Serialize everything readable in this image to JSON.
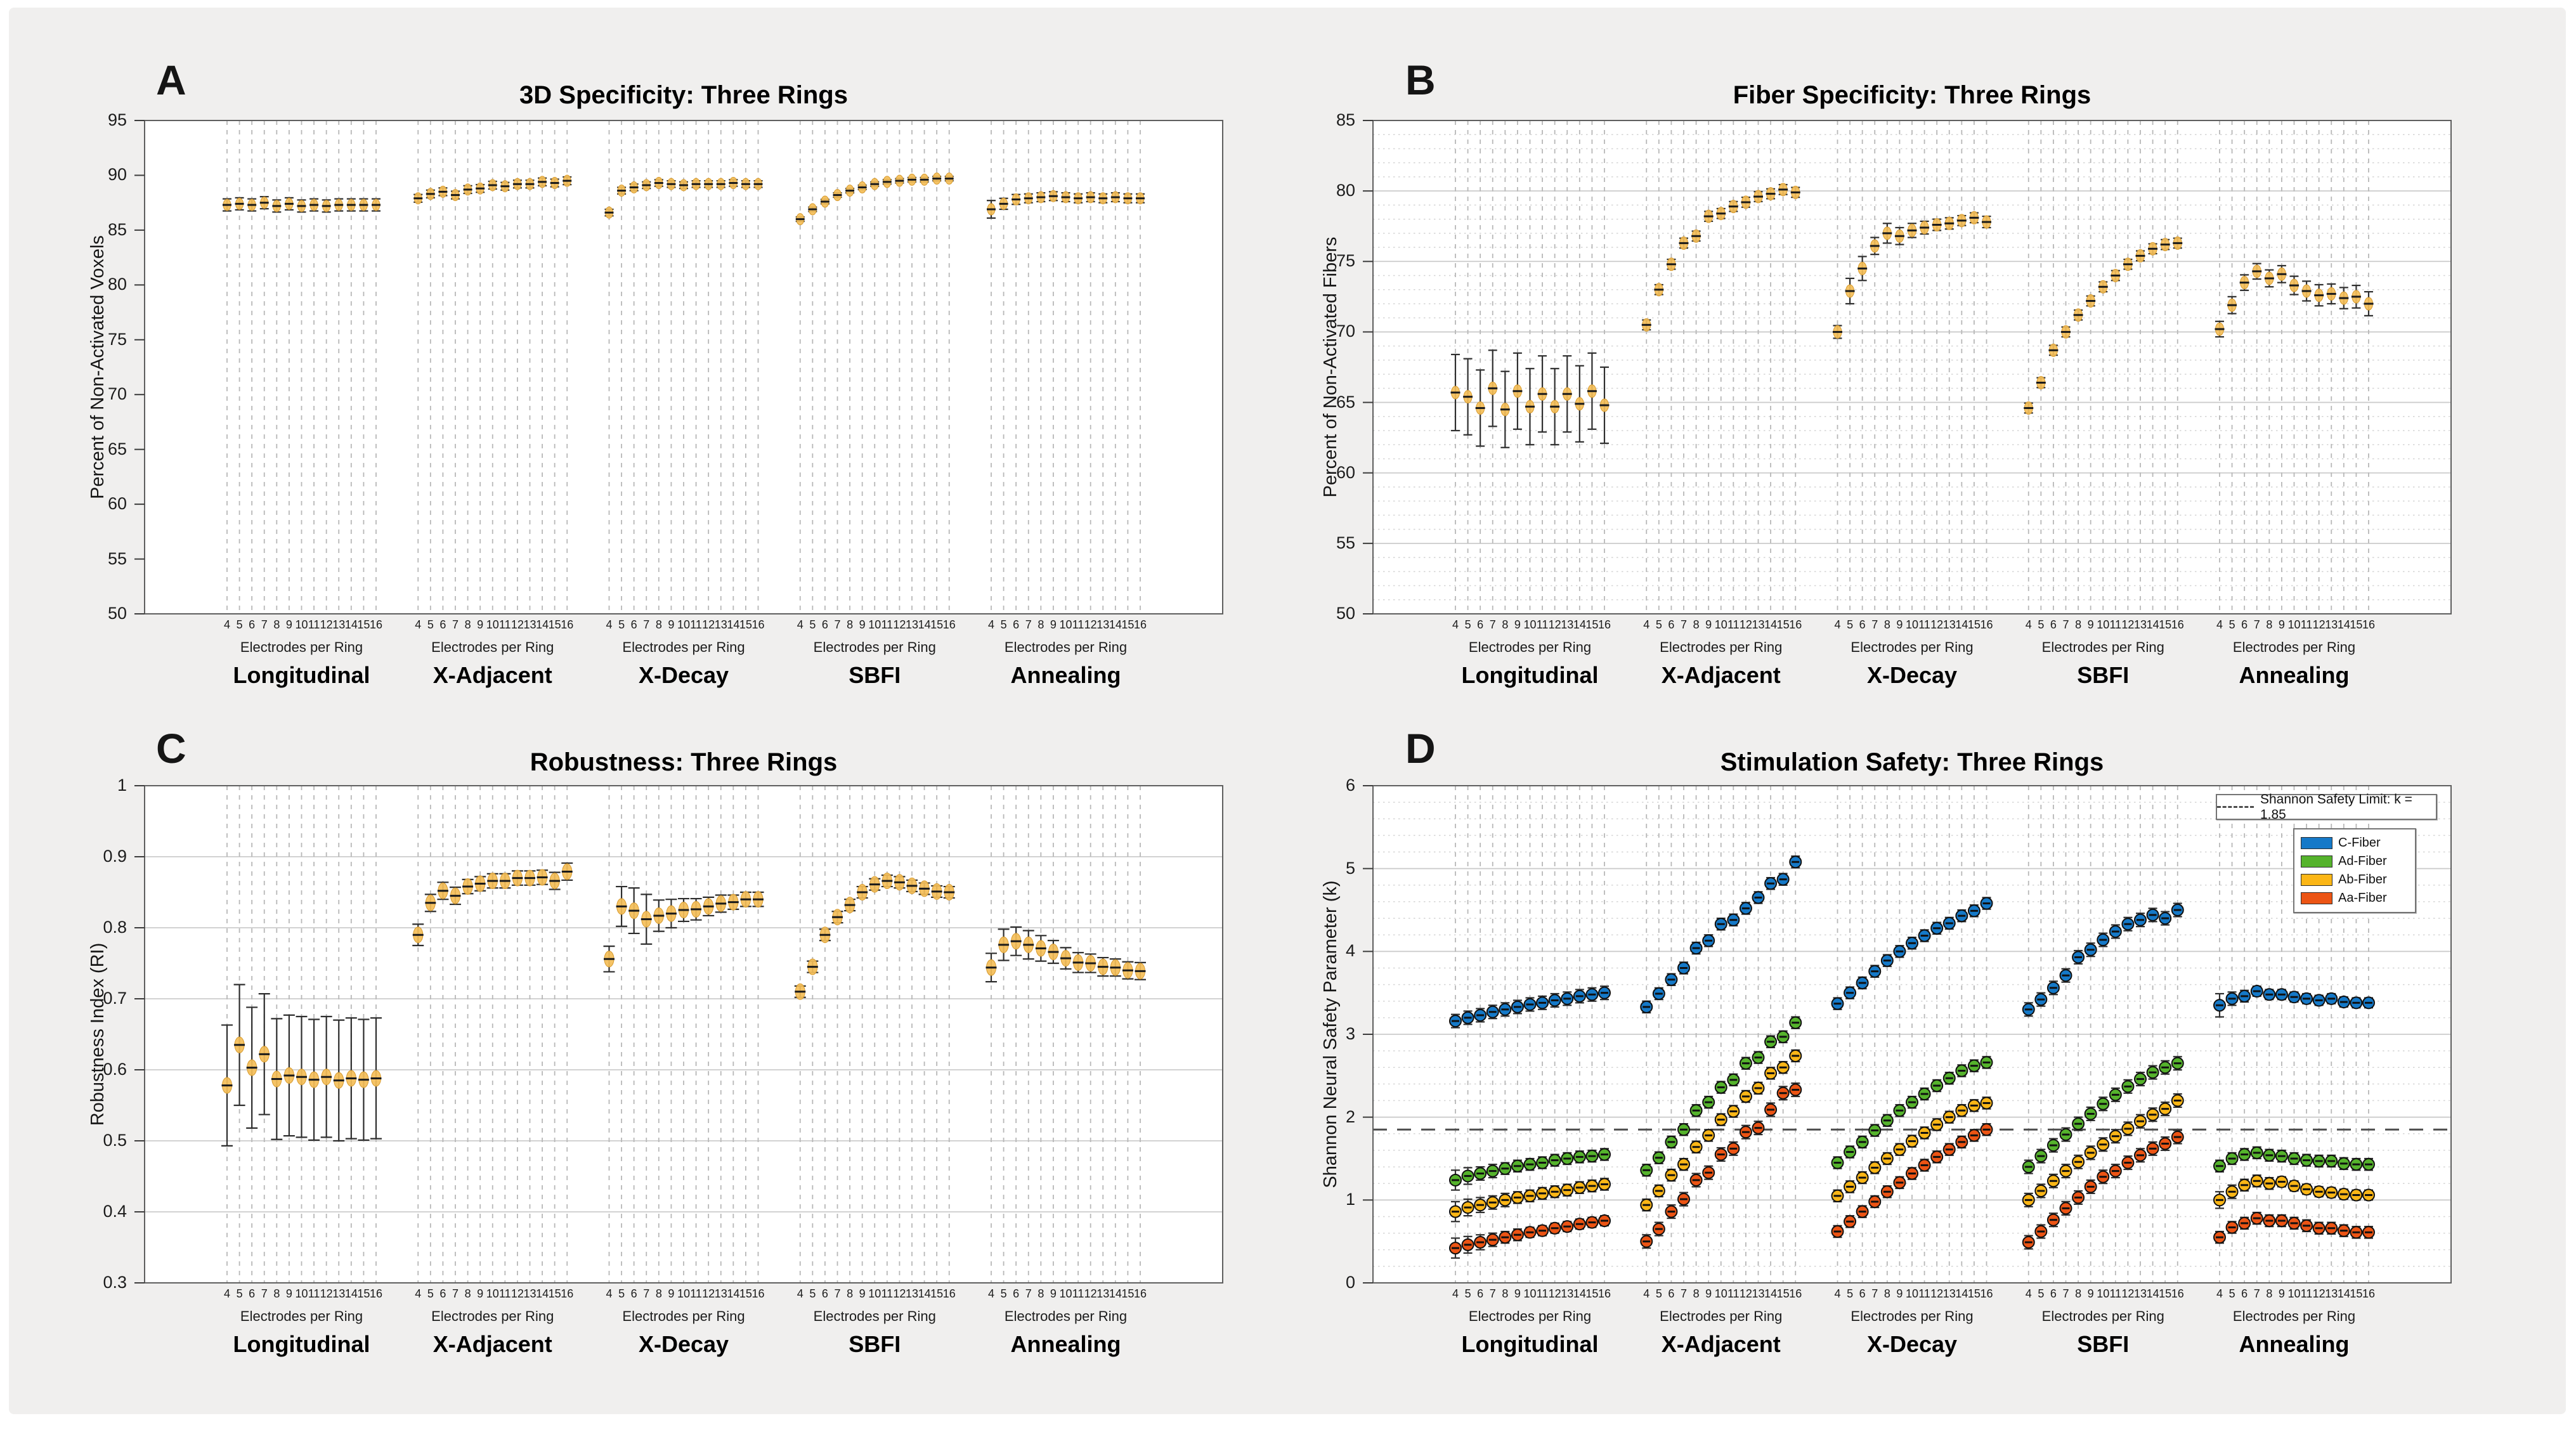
{
  "figure": {
    "background": "#f0efee",
    "page_background": "#ffffff"
  },
  "chart_data": [
    {
      "letter": "A",
      "type": "scatter",
      "title": "3D Specificity: Three Rings",
      "ylabel": "Percent of Non-Activated Voxels",
      "xlabel": "Electrodes per Ring",
      "groups": [
        "Longitudinal",
        "X-Adjacent",
        "X-Decay",
        "SBFI",
        "Annealing"
      ],
      "x_ticklabels": [
        "4",
        "5",
        "6",
        "7",
        "8",
        "9",
        "10",
        "11",
        "12",
        "13",
        "14",
        "15",
        "16"
      ],
      "ylim": [
        50,
        95
      ],
      "yticks": [
        "50",
        "55",
        "60",
        "65",
        "70",
        "75",
        "80",
        "85",
        "90",
        "95"
      ],
      "vgrid": "dashed",
      "hgrid": "none",
      "series": [
        {
          "marker": "oval",
          "color": "#f4be58",
          "values": [
            [
              87.3,
              87.4,
              87.3,
              87.5,
              87.2,
              87.4,
              87.2,
              87.3,
              87.2,
              87.3,
              87.3,
              87.3,
              87.3
            ],
            [
              87.9,
              88.3,
              88.5,
              88.2,
              88.7,
              88.8,
              89.1,
              89.0,
              89.2,
              89.2,
              89.4,
              89.3,
              89.5
            ],
            [
              86.6,
              88.6,
              88.9,
              89.1,
              89.3,
              89.2,
              89.1,
              89.2,
              89.2,
              89.2,
              89.3,
              89.2,
              89.2
            ],
            [
              86.0,
              86.9,
              87.6,
              88.2,
              88.6,
              88.9,
              89.2,
              89.4,
              89.5,
              89.6,
              89.6,
              89.7,
              89.7
            ],
            [
              86.9,
              87.4,
              87.8,
              87.9,
              88.0,
              88.1,
              88.0,
              87.9,
              88.0,
              87.9,
              88.0,
              87.9,
              87.9
            ]
          ],
          "errors": [
            0.55,
            0.35,
            0.3,
            0.2,
            [
              0.8,
              0.5,
              0.45,
              0.4,
              0.4,
              0.4,
              0.4,
              0.4,
              0.4,
              0.4,
              0.4,
              0.4,
              0.4
            ]
          ]
        }
      ]
    },
    {
      "letter": "B",
      "type": "scatter",
      "title": "Fiber Specificity: Three Rings",
      "ylabel": "Percent of Non-Activated Fibers",
      "xlabel": "Electrodes per Ring",
      "groups": [
        "Longitudinal",
        "X-Adjacent",
        "X-Decay",
        "SBFI",
        "Annealing"
      ],
      "x_ticklabels": [
        "4",
        "5",
        "6",
        "7",
        "8",
        "9",
        "10",
        "11",
        "12",
        "13",
        "14",
        "15",
        "16"
      ],
      "ylim": [
        50,
        85
      ],
      "yticks": [
        "50",
        "55",
        "60",
        "65",
        "70",
        "75",
        "80",
        "85"
      ],
      "vgrid": "dashed",
      "hgrid": "major+minor",
      "minor_step": 1,
      "series": [
        {
          "marker": "oval",
          "color": "#f4be58",
          "values": [
            [
              65.7,
              65.4,
              64.6,
              66.0,
              64.5,
              65.8,
              64.7,
              65.6,
              64.7,
              65.6,
              64.9,
              65.8,
              64.8
            ],
            [
              70.5,
              73.0,
              74.8,
              76.3,
              76.8,
              78.2,
              78.4,
              78.9,
              79.2,
              79.6,
              79.8,
              80.1,
              79.9
            ],
            [
              70.0,
              72.9,
              74.5,
              76.1,
              77.0,
              76.8,
              77.2,
              77.4,
              77.6,
              77.7,
              77.9,
              78.1,
              77.8
            ],
            [
              64.6,
              66.4,
              68.7,
              70.0,
              71.2,
              72.2,
              73.2,
              74.0,
              74.8,
              75.4,
              75.9,
              76.2,
              76.3
            ],
            [
              70.2,
              71.9,
              73.5,
              74.3,
              73.8,
              74.1,
              73.3,
              72.9,
              72.6,
              72.7,
              72.4,
              72.5,
              72.0
            ]
          ],
          "errors": [
            2.7,
            0.35,
            [
              0.45,
              0.9,
              0.85,
              0.6,
              0.7,
              0.6,
              0.5,
              0.45,
              0.4,
              0.4,
              0.35,
              0.35,
              0.4
            ],
            0.35,
            [
              0.55,
              0.6,
              0.55,
              0.55,
              0.6,
              0.6,
              0.65,
              0.7,
              0.75,
              0.7,
              0.75,
              0.8,
              0.85
            ]
          ]
        }
      ]
    },
    {
      "letter": "C",
      "type": "scatter",
      "title": "Robustness: Three Rings",
      "ylabel": "Robustness Index (RI)",
      "xlabel": "Electrodes per Ring",
      "groups": [
        "Longitudinal",
        "X-Adjacent",
        "X-Decay",
        "SBFI",
        "Annealing"
      ],
      "x_ticklabels": [
        "4",
        "5",
        "6",
        "7",
        "8",
        "9",
        "10",
        "11",
        "12",
        "13",
        "14",
        "15",
        "16"
      ],
      "ylim": [
        0.3,
        1.0
      ],
      "yticks": [
        "0.3",
        "0.4",
        "0.5",
        "0.6",
        "0.7",
        "0.8",
        "0.9",
        "1"
      ],
      "vgrid": "dashed",
      "hgrid": "major",
      "series": [
        {
          "marker": "oval",
          "color": "#f4be58",
          "values": [
            [
              0.578,
              0.635,
              0.603,
              0.622,
              0.587,
              0.592,
              0.59,
              0.586,
              0.59,
              0.585,
              0.588,
              0.586,
              0.588
            ],
            [
              0.79,
              0.835,
              0.852,
              0.845,
              0.858,
              0.862,
              0.866,
              0.866,
              0.87,
              0.87,
              0.871,
              0.866,
              0.879
            ],
            [
              0.756,
              0.83,
              0.824,
              0.812,
              0.817,
              0.82,
              0.825,
              0.826,
              0.83,
              0.834,
              0.836,
              0.84,
              0.84
            ],
            [
              0.71,
              0.745,
              0.79,
              0.815,
              0.832,
              0.85,
              0.861,
              0.866,
              0.864,
              0.859,
              0.855,
              0.851,
              0.85
            ],
            [
              0.744,
              0.776,
              0.781,
              0.776,
              0.771,
              0.766,
              0.757,
              0.751,
              0.75,
              0.745,
              0.744,
              0.74,
              0.739
            ]
          ],
          "errors": [
            0.085,
            [
              0.015,
              0.012,
              0.012,
              0.012,
              0.01,
              0.01,
              0.01,
              0.01,
              0.01,
              0.01,
              0.01,
              0.012,
              0.012
            ],
            [
              0.018,
              0.028,
              0.032,
              0.035,
              0.022,
              0.02,
              0.016,
              0.015,
              0.013,
              0.012,
              0.01,
              0.01,
              0.01
            ],
            0.008,
            [
              0.02,
              0.022,
              0.02,
              0.02,
              0.018,
              0.016,
              0.015,
              0.014,
              0.013,
              0.013,
              0.012,
              0.012,
              0.012
            ]
          ]
        }
      ]
    },
    {
      "letter": "D",
      "type": "scatter",
      "title": "Stimulation Safety: Three Rings",
      "ylabel": "Shannon Neural Safety Parameter (k)",
      "xlabel": "Electrodes per Ring",
      "groups": [
        "Longitudinal",
        "X-Adjacent",
        "X-Decay",
        "SBFI",
        "Annealing"
      ],
      "x_ticklabels": [
        "4",
        "5",
        "6",
        "7",
        "8",
        "9",
        "10",
        "11",
        "12",
        "13",
        "14",
        "15",
        "16"
      ],
      "ylim": [
        0,
        6
      ],
      "yticks": [
        "0",
        "1",
        "2",
        "3",
        "4",
        "5",
        "6"
      ],
      "vgrid": "dashed",
      "hgrid": "major+minor",
      "minor_step": 0.2,
      "ref_line": {
        "label": "Shannon Safety Limit: k = 1.85",
        "value": 1.85
      },
      "series": [
        {
          "name": "C-Fiber",
          "marker": "circle",
          "color": "#1579c8",
          "values": [
            [
              3.16,
              3.2,
              3.23,
              3.27,
              3.3,
              3.33,
              3.36,
              3.38,
              3.41,
              3.43,
              3.46,
              3.48,
              3.5
            ],
            [
              3.33,
              3.49,
              3.66,
              3.8,
              4.04,
              4.13,
              4.33,
              4.38,
              4.52,
              4.65,
              4.82,
              4.87,
              5.08
            ],
            [
              3.37,
              3.5,
              3.62,
              3.76,
              3.89,
              4.0,
              4.1,
              4.19,
              4.28,
              4.34,
              4.43,
              4.49,
              4.58
            ],
            [
              3.3,
              3.42,
              3.56,
              3.71,
              3.93,
              4.02,
              4.14,
              4.24,
              4.33,
              4.38,
              4.44,
              4.4,
              4.5
            ],
            [
              3.35,
              3.43,
              3.46,
              3.52,
              3.48,
              3.48,
              3.45,
              3.43,
              3.41,
              3.43,
              3.39,
              3.38,
              3.38
            ]
          ],
          "errors": [
            0.08,
            0.07,
            0.07,
            0.08,
            [
              0.14,
              0.08,
              0.07,
              0.06,
              0.06,
              0.06,
              0.06,
              0.06,
              0.06,
              0.06,
              0.06,
              0.06,
              0.06
            ]
          ]
        },
        {
          "name": "Ad-Fiber",
          "marker": "circle",
          "color": "#55b32c",
          "values": [
            [
              1.24,
              1.29,
              1.32,
              1.35,
              1.38,
              1.41,
              1.43,
              1.45,
              1.48,
              1.5,
              1.52,
              1.53,
              1.55
            ],
            [
              1.36,
              1.51,
              1.7,
              1.85,
              2.08,
              2.18,
              2.36,
              2.45,
              2.65,
              2.72,
              2.91,
              2.97,
              3.14
            ],
            [
              1.45,
              1.58,
              1.7,
              1.84,
              1.96,
              2.08,
              2.18,
              2.28,
              2.38,
              2.47,
              2.56,
              2.62,
              2.66
            ],
            [
              1.4,
              1.53,
              1.66,
              1.79,
              1.92,
              2.04,
              2.16,
              2.27,
              2.37,
              2.46,
              2.54,
              2.6,
              2.65
            ],
            [
              1.41,
              1.5,
              1.55,
              1.57,
              1.54,
              1.53,
              1.5,
              1.48,
              1.47,
              1.47,
              1.44,
              1.43,
              1.43
            ]
          ],
          "errors": [
            [
              0.12,
              0.1,
              0.08,
              0.08,
              0.07,
              0.07,
              0.07,
              0.07,
              0.07,
              0.07,
              0.07,
              0.07,
              0.07
            ],
            0.07,
            0.07,
            0.08,
            0.07
          ]
        },
        {
          "name": "Ab-Fiber",
          "marker": "circle",
          "color": "#fbb616",
          "values": [
            [
              0.86,
              0.91,
              0.94,
              0.97,
              1.0,
              1.03,
              1.05,
              1.08,
              1.1,
              1.12,
              1.15,
              1.17,
              1.19
            ],
            [
              0.94,
              1.11,
              1.3,
              1.43,
              1.64,
              1.78,
              1.97,
              2.07,
              2.25,
              2.35,
              2.53,
              2.6,
              2.74
            ],
            [
              1.05,
              1.16,
              1.27,
              1.39,
              1.5,
              1.61,
              1.71,
              1.81,
              1.91,
              2.0,
              2.08,
              2.14,
              2.17
            ],
            [
              1.0,
              1.11,
              1.23,
              1.35,
              1.46,
              1.57,
              1.67,
              1.77,
              1.86,
              1.95,
              2.03,
              2.1,
              2.2
            ],
            [
              1.0,
              1.1,
              1.18,
              1.23,
              1.2,
              1.22,
              1.17,
              1.13,
              1.1,
              1.09,
              1.07,
              1.06,
              1.06
            ]
          ],
          "errors": [
            [
              0.12,
              0.1,
              0.09,
              0.08,
              0.08,
              0.07,
              0.07,
              0.07,
              0.07,
              0.07,
              0.07,
              0.07,
              0.07
            ],
            0.07,
            0.07,
            0.08,
            [
              0.1,
              0.08,
              0.07,
              0.07,
              0.07,
              0.06,
              0.06,
              0.06,
              0.06,
              0.06,
              0.06,
              0.06,
              0.06
            ]
          ]
        },
        {
          "name": "Aa-Fiber",
          "marker": "circle",
          "color": "#ec5414",
          "values": [
            [
              0.42,
              0.46,
              0.49,
              0.52,
              0.55,
              0.58,
              0.61,
              0.63,
              0.66,
              0.68,
              0.71,
              0.73,
              0.75
            ],
            [
              0.5,
              0.65,
              0.86,
              1.01,
              1.24,
              1.33,
              1.55,
              1.62,
              1.82,
              1.87,
              2.09,
              2.29,
              2.33
            ],
            [
              0.62,
              0.74,
              0.86,
              0.98,
              1.1,
              1.21,
              1.32,
              1.42,
              1.52,
              1.61,
              1.7,
              1.78,
              1.85
            ],
            [
              0.49,
              0.62,
              0.76,
              0.9,
              1.03,
              1.16,
              1.28,
              1.35,
              1.45,
              1.54,
              1.62,
              1.68,
              1.76
            ],
            [
              0.55,
              0.67,
              0.72,
              0.78,
              0.75,
              0.75,
              0.72,
              0.69,
              0.66,
              0.66,
              0.63,
              0.61,
              0.61
            ]
          ],
          "errors": [
            [
              0.12,
              0.1,
              0.09,
              0.08,
              0.07,
              0.07,
              0.06,
              0.06,
              0.06,
              0.06,
              0.06,
              0.06,
              0.06
            ],
            0.08,
            0.07,
            0.08,
            0.07
          ]
        }
      ]
    }
  ]
}
